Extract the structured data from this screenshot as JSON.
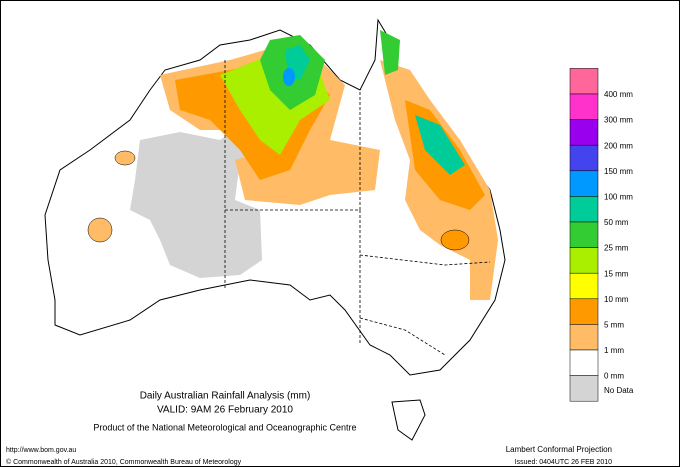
{
  "map": {
    "title": "Daily Australian Rainfall Analysis (mm)",
    "valid": "VALID: 9AM 26 February 2010",
    "product": "Product of the National Meteorological and Oceanographic Centre",
    "url": "http://www.bom.gov.au",
    "copyright": "© Commonwealth of Australia 2010, Commonwealth Bureau of Meteorology",
    "projection": "Lambert Conformal Projection",
    "issued": "Issued: 0404UTC 26 FEB 2010"
  },
  "legend": {
    "colors": [
      "#ff6699",
      "#ff33cc",
      "#9900ee",
      "#4444ee",
      "#0099ff",
      "#00cc99",
      "#33cc33",
      "#aaee00",
      "#ffff00",
      "#ff9900",
      "#ffbb66",
      "#ffffff",
      "#d4d4d4"
    ],
    "labels": [
      "400 mm",
      "300 mm",
      "200 mm",
      "150 mm",
      "100 mm",
      "50 mm",
      "25 mm",
      "15 mm",
      "10 mm",
      "5 mm",
      "1 mm",
      "0 mm"
    ],
    "no_data": "No Data"
  }
}
